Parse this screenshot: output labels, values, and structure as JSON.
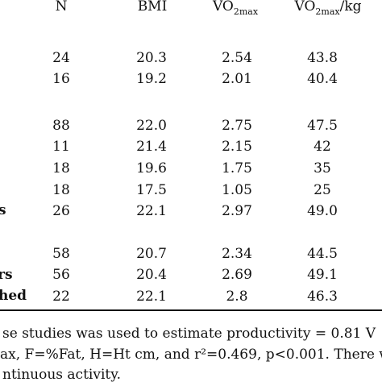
{
  "table": {
    "headers": {
      "n": "N",
      "bmi": "BMI",
      "vo2max_base": "VO",
      "vo2max_sub": "2max",
      "vo2maxkg_base": "VO",
      "vo2maxkg_sub": "2max",
      "vo2maxkg_suffix": "/kg"
    },
    "row_labels": {
      "r5": "s",
      "r7": "rs",
      "r8": "hed"
    },
    "rows": [
      {
        "n": "24",
        "bmi": "20.3",
        "vo2max": "2.54",
        "vo2maxkg": "43.8"
      },
      {
        "n": "16",
        "bmi": "19.2",
        "vo2max": "2.01",
        "vo2maxkg": "40.4"
      },
      {
        "n": "88",
        "bmi": "22.0",
        "vo2max": "2.75",
        "vo2maxkg": "47.5"
      },
      {
        "n": "11",
        "bmi": "21.4",
        "vo2max": "2.15",
        "vo2maxkg": "42"
      },
      {
        "n": "18",
        "bmi": "19.6",
        "vo2max": "1.75",
        "vo2maxkg": "35"
      },
      {
        "n": "18",
        "bmi": "17.5",
        "vo2max": "1.05",
        "vo2maxkg": "25"
      },
      {
        "n": "26",
        "bmi": "22.1",
        "vo2max": "2.97",
        "vo2maxkg": "49.0"
      },
      {
        "n": "58",
        "bmi": "20.7",
        "vo2max": "2.34",
        "vo2maxkg": "44.5"
      },
      {
        "n": "56",
        "bmi": "20.4",
        "vo2max": "2.69",
        "vo2maxkg": "49.1"
      },
      {
        "n": "22",
        "bmi": "22.1",
        "vo2max": "2.8",
        "vo2maxkg": "46.3"
      }
    ]
  },
  "footnote": {
    "line1": "se studies was used to estimate productivity = 0.81 V",
    "line2": "ax, F=%Fat, H=Ht cm, and r²=0.469, p<0.001.  There wa",
    "line3": "ntinuous activity."
  }
}
